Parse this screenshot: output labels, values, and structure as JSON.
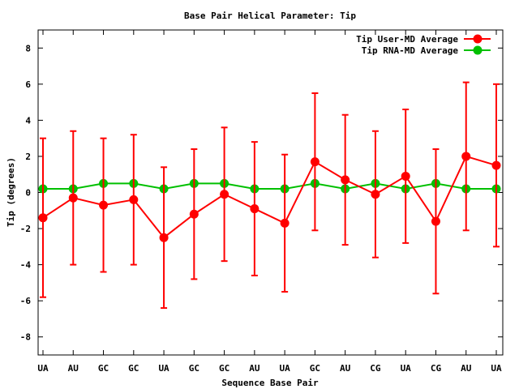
{
  "chart_data": {
    "type": "line",
    "title": "Base Pair Helical Parameter: Tip",
    "xlabel": "Sequence Base Pair",
    "ylabel": "Tip (degrees)",
    "categories": [
      "UA",
      "AU",
      "GC",
      "GC",
      "UA",
      "GC",
      "GC",
      "AU",
      "UA",
      "GC",
      "AU",
      "CG",
      "UA",
      "CG",
      "AU",
      "UA"
    ],
    "ylim": [
      -9,
      9
    ],
    "yticks": [
      -8,
      -6,
      -4,
      -2,
      0,
      2,
      4,
      6,
      8
    ],
    "legend_position": "top-right",
    "series": [
      {
        "name": "Tip User-MD Average",
        "color": "#ff0000",
        "values": [
          -1.4,
          -0.3,
          -0.7,
          -0.4,
          -2.5,
          -1.2,
          -0.1,
          -0.9,
          -1.7,
          1.7,
          0.7,
          -0.1,
          0.9,
          -1.6,
          2.0,
          1.5
        ],
        "error": [
          4.4,
          3.7,
          3.7,
          3.6,
          3.9,
          3.6,
          3.7,
          3.7,
          3.8,
          3.8,
          3.6,
          3.5,
          3.7,
          4.0,
          4.1,
          4.5
        ]
      },
      {
        "name": "Tip RNA-MD Average",
        "color": "#00c000",
        "values": [
          0.2,
          0.2,
          0.5,
          0.5,
          0.2,
          0.5,
          0.5,
          0.2,
          0.2,
          0.5,
          0.2,
          0.5,
          0.2,
          0.5,
          0.2,
          0.2
        ]
      }
    ]
  }
}
